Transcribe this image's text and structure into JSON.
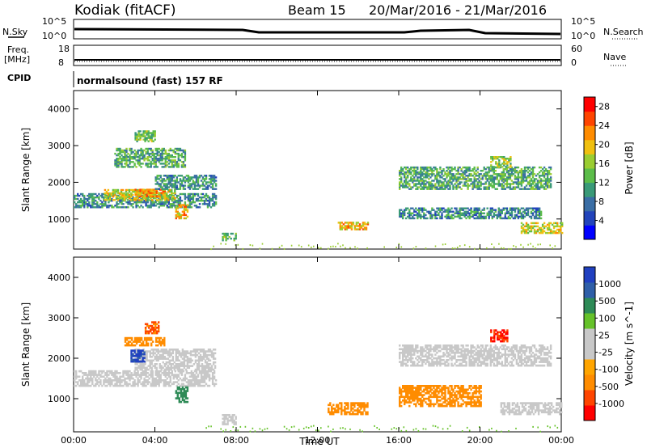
{
  "header": {
    "site": "Kodiak (fitACF)",
    "beam": "Beam 15",
    "date_range": "20/Mar/2016 - 21/Mar/2016"
  },
  "strips": {
    "nsky_label": "N.Sky",
    "nsky_ticks": [
      "10^5",
      "10^0"
    ],
    "nsearch_label": "N.Search",
    "nsearch_ticks": [
      "10^5",
      "10^0"
    ],
    "freq_label_1": "Freq.",
    "freq_label_2": "[MHz]",
    "freq_ticks": [
      "18",
      "8"
    ],
    "nave_label": "Nave",
    "nave_ticks": [
      "60",
      "0"
    ],
    "cpid_label": "CPID",
    "cpid_text": "normalsound (fast) 157 RF"
  },
  "colors": {
    "power": [
      "#0000ff",
      "#2244bb",
      "#3a6ea5",
      "#3a9a78",
      "#5cbd4a",
      "#9acd32",
      "#f0c010",
      "#ff8c00",
      "#ff4500",
      "#ff0000"
    ],
    "velocity": [
      "#2040c0",
      "#2f5fa8",
      "#2e8b57",
      "#66c22a",
      "#c8c8c8",
      "#c8c8c8",
      "#ffa500",
      "#ff8c00",
      "#ff4500",
      "#ff0000"
    ]
  },
  "chart_data": [
    {
      "type": "heatmap",
      "title": "",
      "xlabel": "Time UT",
      "ylabel": "Slant Range [km]",
      "xlim": [
        "00:00",
        "00:00"
      ],
      "xticks": [
        "00:00",
        "04:00",
        "08:00",
        "12:00",
        "16:00",
        "20:00",
        "00:00"
      ],
      "ylim": [
        180,
        4500
      ],
      "yticks": [
        1000,
        2000,
        3000,
        4000
      ],
      "colorbar": {
        "label": "Power [dB]",
        "min": 0,
        "max": 30,
        "ticks": [
          4,
          8,
          12,
          16,
          20,
          24,
          28
        ]
      },
      "regions": [
        {
          "t": [
            0.0,
            7.0
          ],
          "r": [
            1300,
            1700
          ],
          "value": 10
        },
        {
          "t": [
            1.5,
            5.0
          ],
          "r": [
            1500,
            1800
          ],
          "value": 18
        },
        {
          "t": [
            3.0,
            4.5
          ],
          "r": [
            1600,
            1800
          ],
          "value": 22
        },
        {
          "t": [
            4.0,
            7.0
          ],
          "r": [
            1800,
            2200
          ],
          "value": 10
        },
        {
          "t": [
            2.0,
            5.5
          ],
          "r": [
            2400,
            2900
          ],
          "value": 12
        },
        {
          "t": [
            3.0,
            4.0
          ],
          "r": [
            3100,
            3400
          ],
          "value": 14
        },
        {
          "t": [
            5.0,
            5.6
          ],
          "r": [
            1000,
            1400
          ],
          "value": 20
        },
        {
          "t": [
            7.3,
            8.0
          ],
          "r": [
            400,
            600
          ],
          "value": 14
        },
        {
          "t": [
            13.0,
            14.5
          ],
          "r": [
            700,
            900
          ],
          "value": 20
        },
        {
          "t": [
            16.0,
            23.5
          ],
          "r": [
            1800,
            2400
          ],
          "value": 12
        },
        {
          "t": [
            16.0,
            23.0
          ],
          "r": [
            1000,
            1300
          ],
          "value": 9
        },
        {
          "t": [
            20.5,
            21.5
          ],
          "r": [
            2400,
            2700
          ],
          "value": 16
        },
        {
          "t": [
            22.0,
            24.0
          ],
          "r": [
            600,
            900
          ],
          "value": 18
        }
      ]
    },
    {
      "type": "heatmap",
      "title": "",
      "xlabel": "Time UT",
      "ylabel": "Slant Range [km]",
      "xlim": [
        "00:00",
        "00:00"
      ],
      "xticks": [
        "00:00",
        "04:00",
        "08:00",
        "12:00",
        "16:00",
        "20:00",
        "00:00"
      ],
      "ylim": [
        180,
        4500
      ],
      "yticks": [
        1000,
        2000,
        3000,
        4000
      ],
      "colorbar": {
        "label": "Velocity [m s^-1]",
        "ticks": [
          1000,
          500,
          100,
          25,
          -25,
          -100,
          -500,
          -1000
        ]
      },
      "regions": [
        {
          "t": [
            0.0,
            7.0
          ],
          "r": [
            1300,
            1700
          ],
          "value": 0
        },
        {
          "t": [
            3.0,
            7.0
          ],
          "r": [
            1700,
            2200
          ],
          "value": 0
        },
        {
          "t": [
            2.5,
            4.5
          ],
          "r": [
            2300,
            2500
          ],
          "value": -200
        },
        {
          "t": [
            3.5,
            4.2
          ],
          "r": [
            2600,
            2900
          ],
          "value": -600
        },
        {
          "t": [
            2.8,
            3.5
          ],
          "r": [
            1900,
            2200
          ],
          "value": 900
        },
        {
          "t": [
            5.0,
            5.6
          ],
          "r": [
            900,
            1300
          ],
          "value": 200
        },
        {
          "t": [
            7.3,
            8.0
          ],
          "r": [
            350,
            600
          ],
          "value": 0
        },
        {
          "t": [
            12.5,
            14.5
          ],
          "r": [
            600,
            900
          ],
          "value": -200
        },
        {
          "t": [
            16.0,
            23.5
          ],
          "r": [
            1800,
            2300
          ],
          "value": 0
        },
        {
          "t": [
            16.0,
            20.0
          ],
          "r": [
            800,
            1300
          ],
          "value": -200
        },
        {
          "t": [
            20.5,
            21.3
          ],
          "r": [
            2400,
            2700
          ],
          "value": -800
        },
        {
          "t": [
            21.0,
            24.0
          ],
          "r": [
            600,
            900
          ],
          "value": 0
        }
      ]
    }
  ]
}
